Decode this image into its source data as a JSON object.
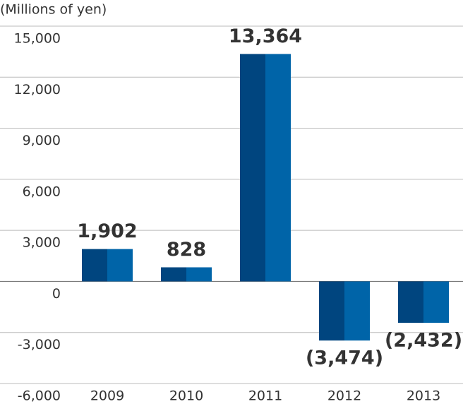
{
  "chart_data": {
    "type": "bar",
    "title": "(Millions of yen)",
    "categories": [
      "2009",
      "2010",
      "2011",
      "2012",
      "2013"
    ],
    "values": [
      1902,
      828,
      13364,
      -3474,
      -2432
    ],
    "value_labels": [
      "1,902",
      "828",
      "13,364",
      "(3,474)",
      "(2,432)"
    ],
    "colors": [
      "#00457f",
      "#0064a8"
    ],
    "ylim": [
      -6000,
      15000
    ],
    "yticks": [
      {
        "value": -6000,
        "label": "-6,000"
      },
      {
        "value": -3000,
        "label": "-3,000"
      },
      0,
      {
        "value": 3000,
        "label": "3,000"
      },
      {
        "value": 6000,
        "label": "6,000"
      },
      {
        "value": 9000,
        "label": "9,000"
      },
      {
        "value": 12000,
        "label": "12,000"
      },
      {
        "value": 15000,
        "label": "15,000"
      }
    ],
    "grid": true
  }
}
